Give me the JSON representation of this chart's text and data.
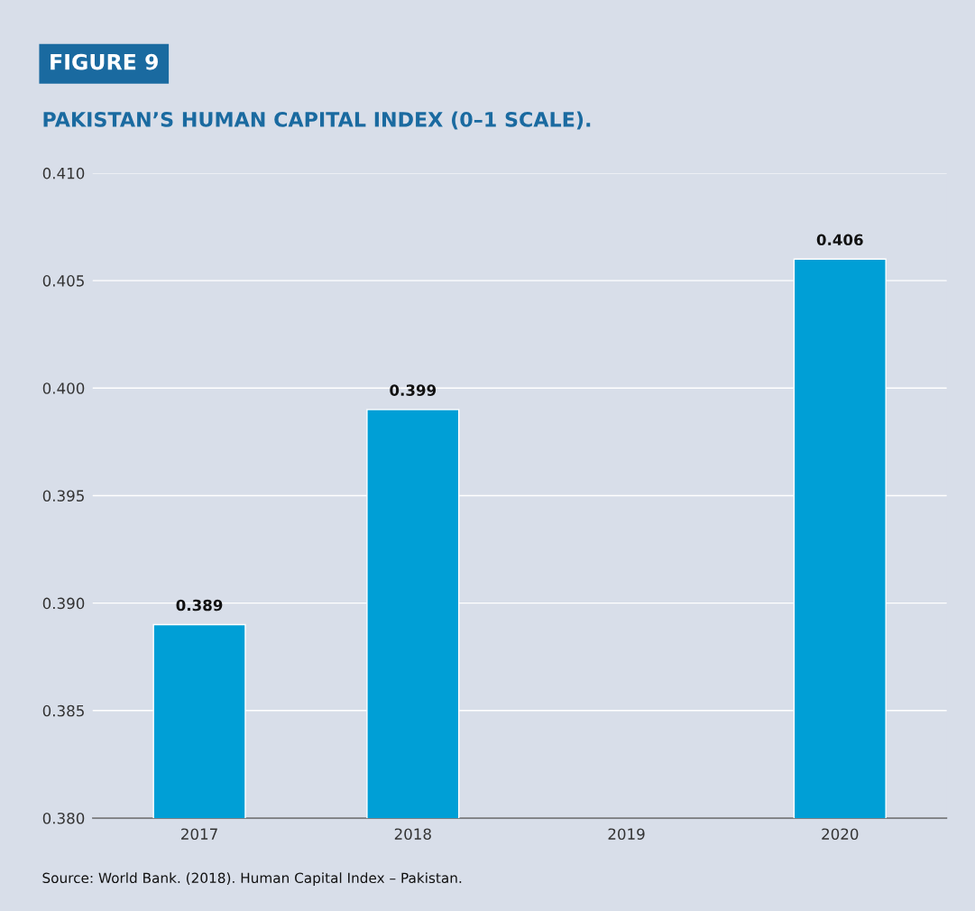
{
  "chart_data": {
    "type": "bar",
    "title": "FIGURE 9",
    "subtitle": "PAKISTAN’S HUMAN CAPITAL INDEX (0–1 SCALE).",
    "categories": [
      "2017",
      "2018",
      "2019",
      "2020"
    ],
    "values": [
      0.389,
      0.399,
      null,
      0.406
    ],
    "color": "#009fd6",
    "ylim": [
      0.38,
      0.41
    ],
    "yticks": [
      {
        "value": 0.38,
        "label": "0.380"
      },
      {
        "value": 0.385,
        "label": "0.385"
      },
      {
        "value": 0.39,
        "label": "0.390"
      },
      {
        "value": 0.395,
        "label": "0.395"
      },
      {
        "value": 0.4,
        "label": "0.400"
      },
      {
        "value": 0.405,
        "label": "0.405"
      },
      {
        "value": 0.41,
        "label": "0.410"
      }
    ],
    "grid": "y",
    "data_labels": true,
    "annotations": [
      "Source: World Bank. (2018). Human Capital Index – Pakistan."
    ]
  }
}
